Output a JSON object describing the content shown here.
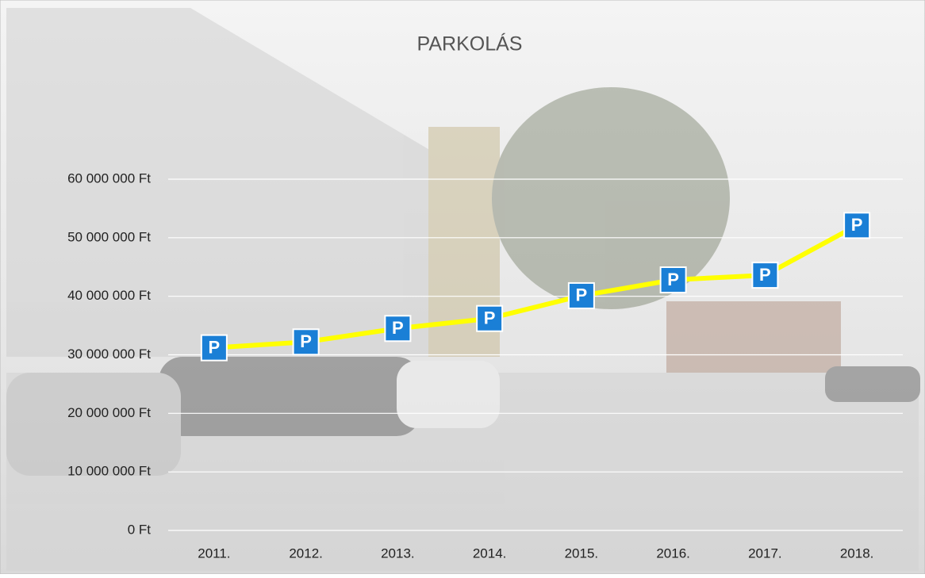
{
  "chart_data": {
    "type": "line",
    "title": "PARKOLÁS",
    "categories": [
      "2011.",
      "2012.",
      "2013.",
      "2014.",
      "2015.",
      "2016.",
      "2017.",
      "2018."
    ],
    "values": [
      31200000,
      32200000,
      34500000,
      36200000,
      40100000,
      42800000,
      43600000,
      52100000
    ],
    "color": "#ffff00",
    "marker_color": "#1a7fd6",
    "marker_label": "P",
    "ylim": [
      0,
      60000000
    ],
    "yticks": [
      {
        "value": 0,
        "label": "0 Ft"
      },
      {
        "value": 10000000,
        "label": "10 000 000 Ft"
      },
      {
        "value": 20000000,
        "label": "20 000 000 Ft"
      },
      {
        "value": 30000000,
        "label": "30 000 000 Ft"
      },
      {
        "value": 40000000,
        "label": "40 000 000 Ft"
      },
      {
        "value": 50000000,
        "label": "50 000 000 Ft"
      },
      {
        "value": 60000000,
        "label": "60 000 000 Ft"
      }
    ],
    "grid": true
  }
}
